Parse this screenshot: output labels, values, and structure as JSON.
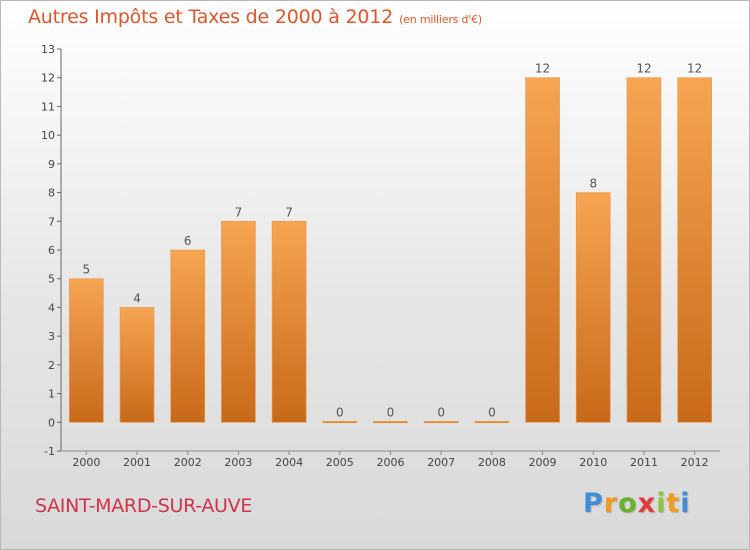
{
  "header": {
    "title": "Autres Impôts et Taxes de 2000 à 2012",
    "subtitle": "(en milliers d'€)"
  },
  "footer": {
    "city": "SAINT-MARD-SUR-AUVE",
    "logo_letters": [
      "P",
      "r",
      "o",
      "x",
      "i",
      "t",
      "i"
    ],
    "logo_colors": [
      "#3f8fd8",
      "#f39a1e",
      "#6ab12e",
      "#e23a3a",
      "#8cc63f",
      "#f39a1e",
      "#3f8fd8"
    ]
  },
  "colors": {
    "bar_top": "#f6a553",
    "bar_bottom": "#c8691a",
    "title": "#e0562b",
    "city": "#d0334a"
  },
  "chart_data": {
    "type": "bar",
    "categories": [
      "2000",
      "2001",
      "2002",
      "2003",
      "2004",
      "2005",
      "2006",
      "2007",
      "2008",
      "2009",
      "2010",
      "2011",
      "2012"
    ],
    "values": [
      5,
      4,
      6,
      7,
      7,
      0,
      0,
      0,
      0,
      12,
      8,
      12,
      12
    ],
    "data_labels": [
      "5",
      "4",
      "6",
      "7",
      "7",
      "0",
      "0",
      "0",
      "0",
      "12",
      "8",
      "12",
      "12"
    ],
    "y_ticks": [
      "-1",
      "0",
      "1",
      "2",
      "3",
      "4",
      "5",
      "6",
      "7",
      "8",
      "9",
      "10",
      "11",
      "12",
      "13"
    ],
    "ylim": [
      -1,
      13
    ],
    "grid": false,
    "legend": "none"
  }
}
